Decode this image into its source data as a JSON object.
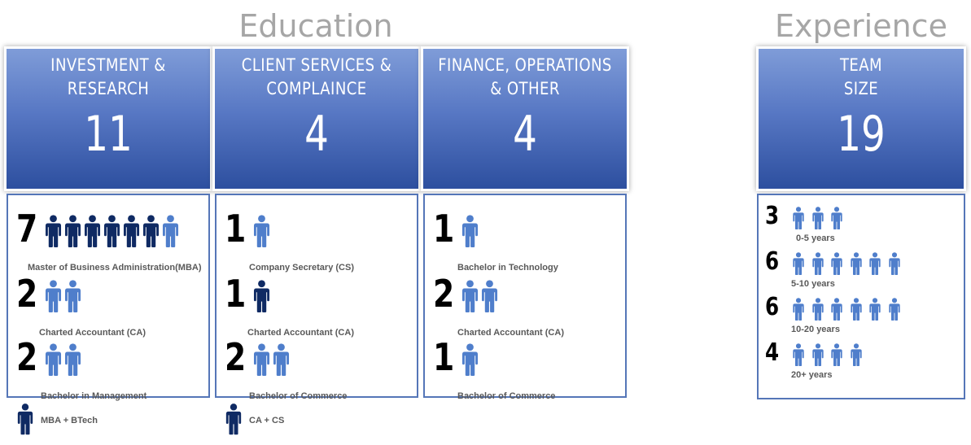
{
  "sections": {
    "education_title": "Education",
    "experience_title": "Experience"
  },
  "colors": {
    "person_light": "#4f7ecb",
    "person_dark": "#0f2a63",
    "box_border": "#5576b8"
  },
  "icons": {
    "person": "person-icon"
  },
  "education": [
    {
      "title": "INVESTMENT &\nRESEARCH",
      "count": "11",
      "entries": [
        {
          "count": "7",
          "label": "Master of Business Administration(MBA)",
          "icons": [
            "dark",
            "dark",
            "dark",
            "dark",
            "dark",
            "dark",
            "light"
          ]
        },
        {
          "count": "2",
          "label": "Charted Accountant (CA)",
          "icons": [
            "light",
            "light"
          ]
        },
        {
          "count": "2",
          "label": "Bachelor in Management",
          "icons": [
            "light",
            "light"
          ]
        }
      ],
      "footnote": {
        "label": "MBA + BTech",
        "icon": "dark"
      }
    },
    {
      "title": "CLIENT SERVICES &\nCOMPLAINCE",
      "count": "4",
      "entries": [
        {
          "count": "1",
          "label": "Company Secretary (CS)",
          "icons": [
            "light"
          ]
        },
        {
          "count": "1",
          "label": "Charted Accountant (CA)",
          "icons": [
            "dark"
          ]
        },
        {
          "count": "2",
          "label": "Bachelor of Commerce",
          "icons": [
            "light",
            "light"
          ]
        }
      ],
      "footnote": {
        "label": "CA + CS",
        "icon": "dark"
      }
    },
    {
      "title": "FINANCE, OPERATIONS\n& OTHER",
      "count": "4",
      "entries": [
        {
          "count": "1",
          "label": "Bachelor in Technology",
          "icons": [
            "light"
          ]
        },
        {
          "count": "2",
          "label": "Charted Accountant (CA)",
          "icons": [
            "light",
            "light"
          ]
        },
        {
          "count": "1",
          "label": "Bachelor of Commerce",
          "icons": [
            "light"
          ]
        }
      ]
    }
  ],
  "experience": {
    "title": "TEAM\nSIZE",
    "count": "19",
    "entries": [
      {
        "count": "3",
        "label": "0-5 years",
        "icons": 3
      },
      {
        "count": "6",
        "label": "5-10 years",
        "icons": 6
      },
      {
        "count": "6",
        "label": "10-20 years",
        "icons": 6
      },
      {
        "count": "4",
        "label": "20+ years",
        "icons": 4
      }
    ]
  }
}
